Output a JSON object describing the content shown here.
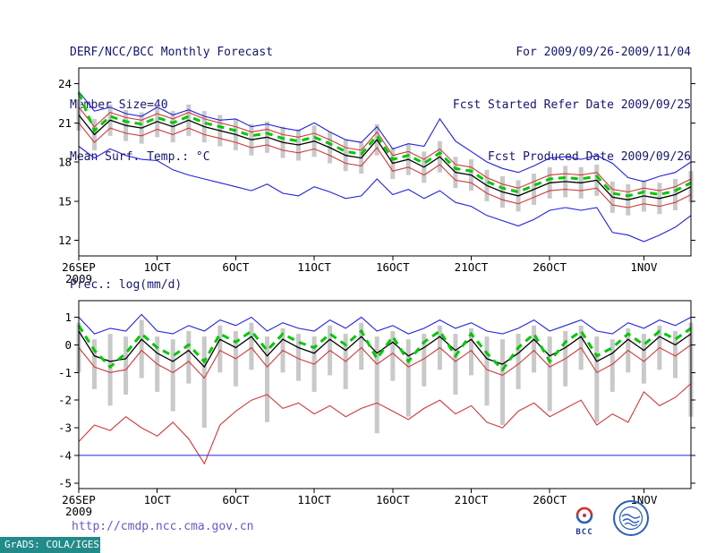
{
  "header": {
    "title": "DERF/NCC/BCC Monthly Forecast",
    "member_size": "Member Size=40",
    "temp_label": "Mean Surf. Temp.: °C",
    "range": "For 2009/09/26-2009/11/04",
    "refer_date": "Fcst Started Refer Date 2009/09/25",
    "produced_date": "Fcst Produced Date 2009/09/26"
  },
  "precip_title": "Prec.: log(mm/d)",
  "footer": {
    "url": "http://cmdp.ncc.cma.gov.cn",
    "bcc_label": "BCC",
    "stamp": "GrADS: COLA/IGES"
  },
  "colors": {
    "header_text": "#15156e",
    "url_text": "#6a58c6",
    "stamp_bg": "#238a8a",
    "blue_line": "#2020dd",
    "red_line": "#d03838",
    "green_line": "#00c800",
    "black_line": "#000000",
    "spread_bar": "#c9c9c9"
  },
  "chart_data": [
    {
      "type": "line",
      "title": "Mean Surf. Temp.: °C",
      "n_days": 40,
      "ylim": [
        10.8,
        25.2
      ],
      "yticks": [
        24,
        21,
        18,
        15,
        12
      ],
      "xticks": [
        {
          "day": 0,
          "label": "26SEP",
          "sublabel": "2009"
        },
        {
          "day": 5,
          "label": "1OCT"
        },
        {
          "day": 10,
          "label": "6OCT"
        },
        {
          "day": 15,
          "label": "11OCT"
        },
        {
          "day": 20,
          "label": "16OCT"
        },
        {
          "day": 25,
          "label": "21OCT"
        },
        {
          "day": 30,
          "label": "26OCT"
        },
        {
          "day": 36,
          "label": "1NOV"
        }
      ],
      "bars": {
        "color": "#c9c9c9",
        "top": [
          22.8,
          21.3,
          22.4,
          22.0,
          21.8,
          22.3,
          21.9,
          22.4,
          21.9,
          21.6,
          21.3,
          20.9,
          21.1,
          20.7,
          20.5,
          20.8,
          20.3,
          19.7,
          19.5,
          20.9,
          19.1,
          19.4,
          18.8,
          19.6,
          18.4,
          18.2,
          17.4,
          16.9,
          16.6,
          17.1,
          17.6,
          17.7,
          17.6,
          17.8,
          16.5,
          16.3,
          16.6,
          16.4,
          16.7,
          17.3
        ],
        "bottom": [
          20.4,
          18.9,
          20.0,
          19.6,
          19.4,
          19.9,
          19.5,
          20.0,
          19.5,
          19.2,
          18.9,
          18.5,
          18.7,
          18.3,
          18.1,
          18.4,
          17.9,
          17.3,
          17.1,
          18.5,
          16.7,
          17.0,
          16.4,
          17.2,
          16.0,
          15.8,
          15.0,
          14.5,
          14.2,
          14.7,
          15.2,
          15.3,
          15.2,
          15.4,
          14.1,
          13.9,
          14.2,
          14.0,
          14.3,
          14.9
        ]
      },
      "series": [
        {
          "name": "ensemble-max",
          "color": "#2020dd",
          "width": 1.1,
          "values": [
            23.4,
            21.9,
            22.2,
            21.7,
            21.5,
            22.2,
            21.6,
            22.0,
            21.5,
            21.2,
            21.3,
            20.7,
            20.9,
            20.6,
            20.4,
            21.0,
            20.3,
            19.7,
            19.5,
            20.7,
            19.0,
            19.4,
            19.2,
            21.3,
            19.6,
            18.8,
            18.0,
            17.5,
            17.2,
            17.7,
            18.3,
            18.4,
            18.2,
            18.5,
            17.9,
            16.8,
            16.5,
            16.9,
            17.2,
            18.0
          ]
        },
        {
          "name": "plus-sd",
          "color": "#d03838",
          "width": 1.1,
          "values": [
            22.2,
            20.7,
            21.8,
            21.4,
            21.2,
            21.7,
            21.3,
            21.8,
            21.3,
            21.0,
            20.7,
            20.3,
            20.5,
            20.1,
            19.9,
            20.2,
            19.7,
            19.1,
            18.9,
            20.3,
            18.5,
            18.8,
            18.2,
            19.0,
            17.8,
            17.6,
            16.8,
            16.3,
            16.0,
            16.5,
            17.0,
            17.1,
            17.0,
            17.2,
            15.9,
            15.7,
            16.0,
            15.8,
            16.1,
            16.7
          ]
        },
        {
          "name": "ensemble-mean",
          "color": "#000000",
          "width": 1.3,
          "values": [
            21.6,
            20.1,
            21.2,
            20.8,
            20.6,
            21.1,
            20.7,
            21.2,
            20.7,
            20.4,
            20.1,
            19.7,
            19.9,
            19.5,
            19.3,
            19.6,
            19.1,
            18.5,
            18.3,
            19.7,
            17.9,
            18.2,
            17.6,
            18.4,
            17.2,
            17.0,
            16.2,
            15.7,
            15.4,
            15.9,
            16.4,
            16.5,
            16.4,
            16.6,
            15.3,
            15.1,
            15.4,
            15.2,
            15.5,
            16.1
          ]
        },
        {
          "name": "minus-sd",
          "color": "#d03838",
          "width": 1.1,
          "values": [
            21.0,
            19.5,
            20.6,
            20.2,
            20.0,
            20.5,
            20.1,
            20.6,
            20.1,
            19.8,
            19.5,
            19.1,
            19.3,
            18.9,
            18.7,
            19.0,
            18.5,
            17.9,
            17.7,
            19.1,
            17.3,
            17.6,
            17.0,
            17.8,
            16.6,
            16.4,
            15.6,
            15.1,
            14.8,
            15.3,
            15.8,
            15.9,
            15.8,
            16.0,
            14.7,
            14.5,
            14.8,
            14.6,
            14.9,
            15.5
          ]
        },
        {
          "name": "ensemble-min",
          "color": "#2020dd",
          "width": 1.1,
          "values": [
            19.2,
            18.3,
            19.0,
            18.5,
            18.2,
            18.1,
            17.4,
            17.0,
            16.7,
            16.4,
            16.1,
            15.8,
            16.3,
            15.6,
            15.4,
            16.1,
            15.7,
            15.2,
            15.4,
            16.7,
            15.5,
            15.9,
            15.2,
            15.8,
            14.9,
            14.6,
            13.9,
            13.5,
            13.1,
            13.6,
            14.3,
            14.5,
            14.3,
            14.5,
            12.6,
            12.4,
            11.9,
            12.4,
            13.0,
            13.9
          ]
        },
        {
          "name": "observation-dashed",
          "color": "#00c800",
          "width": 3,
          "dash": true,
          "values": [
            23.3,
            20.4,
            21.5,
            21.1,
            20.9,
            21.4,
            21.0,
            21.5,
            21.0,
            20.7,
            20.4,
            20.0,
            20.2,
            19.8,
            19.6,
            19.9,
            19.4,
            18.8,
            18.6,
            20.0,
            18.2,
            18.5,
            17.9,
            18.7,
            17.5,
            17.3,
            16.5,
            16.0,
            15.7,
            16.2,
            16.7,
            16.8,
            16.7,
            16.9,
            15.6,
            15.4,
            15.7,
            15.5,
            15.8,
            16.4
          ]
        }
      ]
    },
    {
      "type": "line",
      "title": "Prec.: log(mm/d)",
      "n_days": 40,
      "ylim": [
        -5.2,
        1.6
      ],
      "yticks": [
        1,
        0,
        -1,
        -2,
        -3,
        -4,
        -5
      ],
      "xticks": [
        {
          "day": 0,
          "label": "26SEP",
          "sublabel": "2009"
        },
        {
          "day": 5,
          "label": "1OCT"
        },
        {
          "day": 10,
          "label": "6OCT"
        },
        {
          "day": 15,
          "label": "11OCT"
        },
        {
          "day": 20,
          "label": "16OCT"
        },
        {
          "day": 25,
          "label": "21OCT"
        },
        {
          "day": 30,
          "label": "26OCT"
        },
        {
          "day": 36,
          "label": "1NOV"
        }
      ],
      "bars": {
        "color": "#c9c9c9",
        "top": [
          0.8,
          0.2,
          0.4,
          0.3,
          0.9,
          0.3,
          0.2,
          0.5,
          0.3,
          0.7,
          0.5,
          0.8,
          0.3,
          0.6,
          0.4,
          0.3,
          0.7,
          0.4,
          0.8,
          0.3,
          0.5,
          0.2,
          0.4,
          0.7,
          0.4,
          0.6,
          0.3,
          0.2,
          0.4,
          0.7,
          0.3,
          0.5,
          0.7,
          0.3,
          0.2,
          0.6,
          0.4,
          0.7,
          0.5,
          0.8
        ],
        "bottom": [
          -1.0,
          -1.6,
          -2.2,
          -1.8,
          -1.2,
          -1.7,
          -2.4,
          -1.4,
          -3.0,
          -1.0,
          -1.5,
          -0.9,
          -2.8,
          -1.0,
          -1.3,
          -1.7,
          -1.1,
          -1.6,
          -0.9,
          -3.2,
          -1.3,
          -2.6,
          -1.5,
          -0.9,
          -1.8,
          -1.1,
          -2.2,
          -2.9,
          -1.6,
          -1.0,
          -2.4,
          -1.5,
          -0.9,
          -2.8,
          -1.7,
          -1.0,
          -1.4,
          -0.9,
          -1.2,
          -2.6
        ]
      },
      "series": [
        {
          "name": "ensemble-max",
          "color": "#2020dd",
          "width": 1.1,
          "values": [
            1.0,
            0.4,
            0.6,
            0.5,
            1.1,
            0.5,
            0.4,
            0.7,
            0.5,
            0.9,
            0.7,
            1.0,
            0.5,
            0.8,
            0.6,
            0.5,
            0.9,
            0.6,
            1.0,
            0.5,
            0.7,
            0.4,
            0.6,
            0.9,
            0.6,
            0.8,
            0.5,
            0.4,
            0.6,
            0.9,
            0.5,
            0.7,
            0.9,
            0.5,
            0.4,
            0.8,
            0.6,
            0.9,
            0.7,
            1.0
          ]
        },
        {
          "name": "ensemble-mean",
          "color": "#000000",
          "width": 1.3,
          "values": [
            0.5,
            -0.4,
            -0.6,
            -0.5,
            0.2,
            -0.3,
            -0.6,
            -0.2,
            -0.8,
            0.2,
            -0.1,
            0.3,
            -0.4,
            0.2,
            -0.1,
            -0.3,
            0.2,
            -0.2,
            0.3,
            -0.3,
            0.1,
            -0.4,
            -0.1,
            0.3,
            -0.2,
            0.2,
            -0.5,
            -0.7,
            -0.3,
            0.2,
            -0.4,
            -0.1,
            0.3,
            -0.6,
            -0.3,
            0.2,
            -0.2,
            0.3,
            0.0,
            0.4
          ]
        },
        {
          "name": "minus-sd",
          "color": "#d03838",
          "width": 1.1,
          "values": [
            -0.1,
            -0.8,
            -1.0,
            -0.9,
            -0.2,
            -0.7,
            -1.0,
            -0.6,
            -1.2,
            -0.2,
            -0.5,
            -0.1,
            -0.8,
            -0.2,
            -0.5,
            -0.7,
            -0.2,
            -0.6,
            -0.1,
            -0.7,
            -0.3,
            -0.8,
            -0.5,
            -0.1,
            -0.6,
            -0.2,
            -0.9,
            -1.1,
            -0.7,
            -0.2,
            -0.8,
            -0.5,
            -0.1,
            -1.0,
            -0.7,
            -0.2,
            -0.6,
            -0.1,
            -0.4,
            0.0
          ]
        },
        {
          "name": "ensemble-min",
          "color": "#d03838",
          "width": 1.1,
          "values": [
            -3.5,
            -2.9,
            -3.1,
            -2.6,
            -3.0,
            -3.3,
            -2.8,
            -3.4,
            -4.3,
            -2.9,
            -2.4,
            -2.0,
            -1.8,
            -2.3,
            -2.1,
            -2.5,
            -2.2,
            -2.6,
            -2.3,
            -2.1,
            -2.4,
            -2.7,
            -2.3,
            -2.0,
            -2.5,
            -2.2,
            -2.8,
            -3.0,
            -2.4,
            -2.1,
            -2.6,
            -2.3,
            -2.0,
            -2.9,
            -2.5,
            -2.8,
            -1.7,
            -2.2,
            -1.9,
            -1.4
          ]
        },
        {
          "name": "observation-dashed",
          "color": "#00c800",
          "width": 3,
          "dash": true,
          "values": [
            0.7,
            -0.2,
            -0.8,
            -0.3,
            0.4,
            -0.1,
            -0.4,
            0.0,
            -0.6,
            0.4,
            0.1,
            0.5,
            -0.2,
            0.4,
            0.1,
            -0.1,
            0.4,
            0.0,
            0.5,
            -0.5,
            0.3,
            -0.6,
            0.1,
            0.5,
            -0.4,
            0.4,
            -0.3,
            -0.9,
            -0.1,
            0.4,
            -0.6,
            0.1,
            0.5,
            -0.4,
            -0.1,
            0.4,
            0.0,
            0.5,
            0.2,
            0.6
          ]
        },
        {
          "name": "threshold-line",
          "color": "#2020dd",
          "width": 1,
          "constant": -4
        }
      ]
    }
  ]
}
